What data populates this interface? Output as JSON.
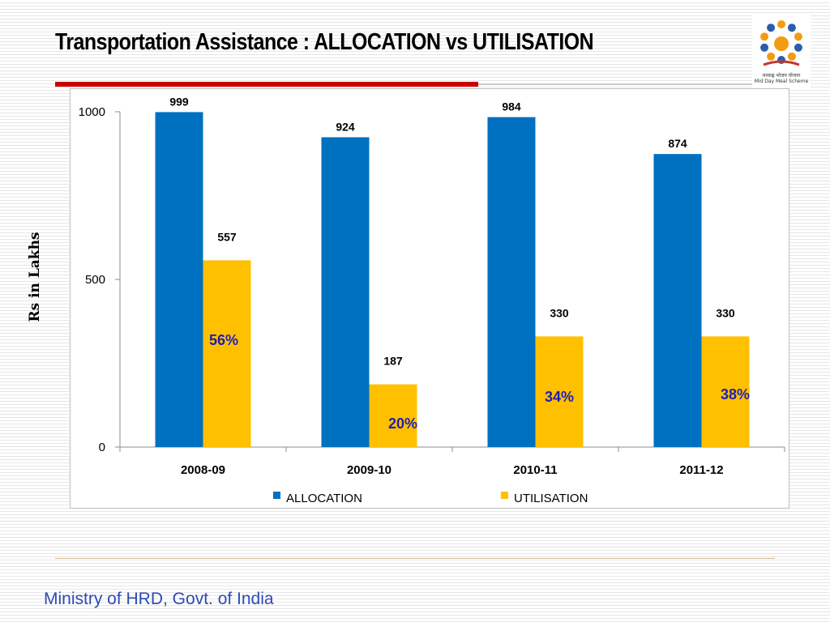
{
  "slide": {
    "title": "Transportation Assistance : ALLOCATION vs UTILISATION",
    "footer": "Ministry of HRD, Govt. of India"
  },
  "logo": {
    "icon": "mid-day-meal-logo",
    "caption_hi": "मध्याह्न भोजन योजना",
    "caption_en": "Mid Day Meal Scheme",
    "colors": [
      "#f39c12",
      "#2a5db0",
      "#2a5db0"
    ]
  },
  "chart_data": {
    "type": "bar",
    "title": "",
    "xlabel": "",
    "ylabel": "Rs in Lakhs",
    "categories": [
      "2008-09",
      "2009-10",
      "2010-11",
      "2011-12"
    ],
    "series": [
      {
        "name": "ALLOCATION",
        "values": [
          999,
          924,
          984,
          874
        ],
        "color": "#0070c0"
      },
      {
        "name": "UTILISATION",
        "values": [
          557,
          187,
          330,
          330
        ],
        "color": "#ffc000"
      }
    ],
    "data_labels": {
      "ALLOCATION": [
        "999",
        "924",
        "984",
        "874"
      ],
      "UTILISATION": [
        "557",
        "187",
        "330",
        "330"
      ]
    },
    "annotations": [
      "56%",
      "20%",
      "34%",
      "38%"
    ],
    "annotation_color": "#1f1fb4",
    "ylim": [
      0,
      1000
    ],
    "yticks": [
      0,
      500,
      1000
    ],
    "grid": false,
    "legend_position": "bottom"
  }
}
